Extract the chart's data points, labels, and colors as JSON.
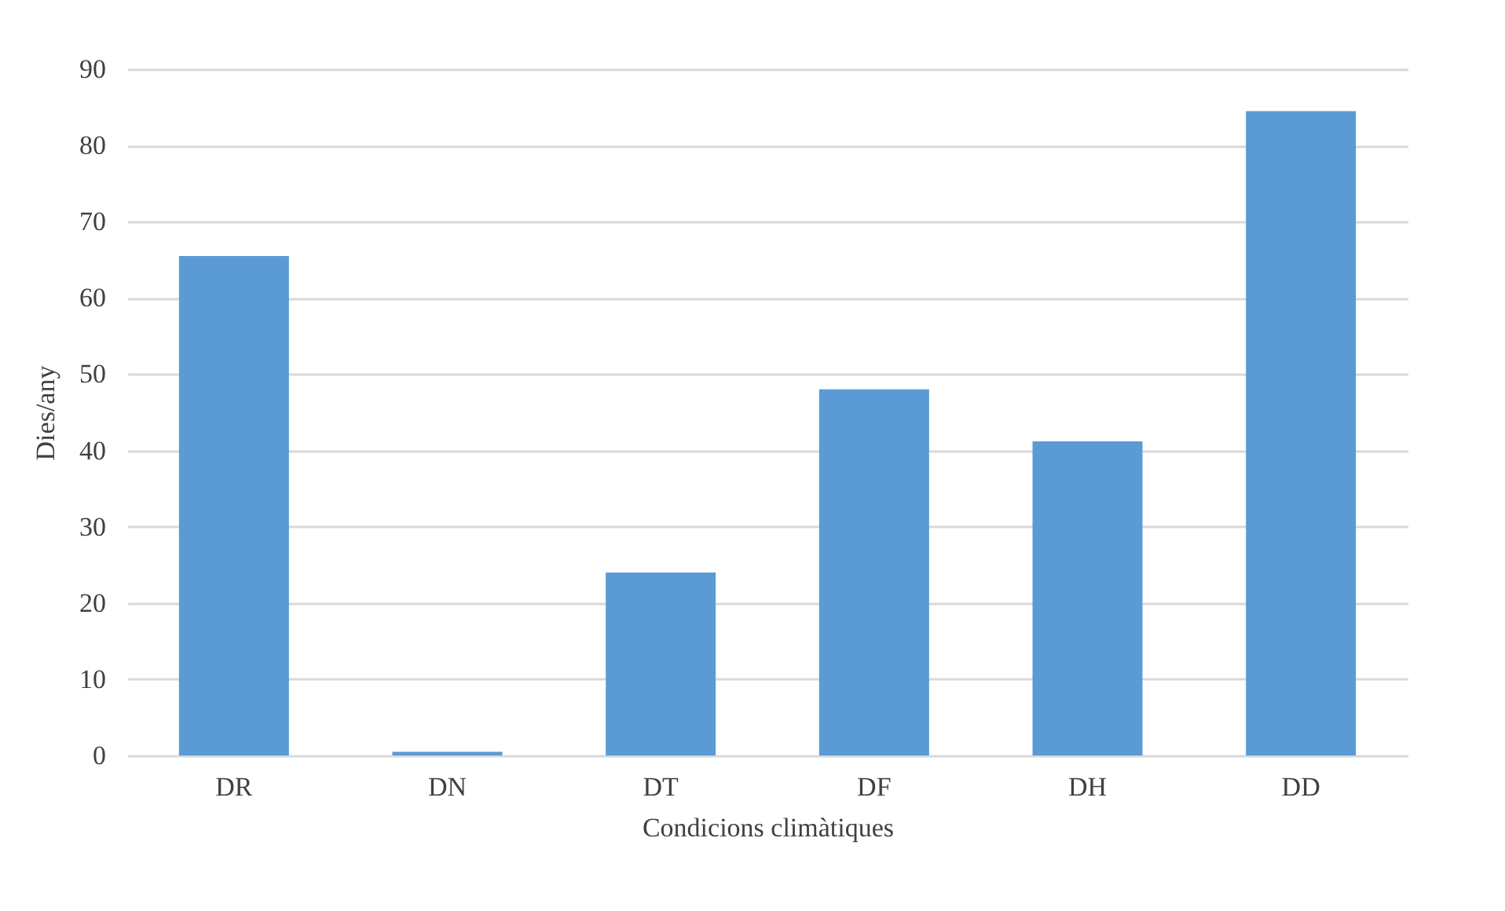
{
  "chart_data": {
    "type": "bar",
    "xlabel": "Condicions climàtiques",
    "ylabel": "Dies/any",
    "categories": [
      "DR",
      "DN",
      "DT",
      "DF",
      "DH",
      "DD"
    ],
    "values": [
      65.5,
      0.5,
      24,
      48,
      41.2,
      84.5
    ],
    "color": "#5b9bd5",
    "ylim": [
      0,
      90
    ],
    "yticks": [
      0,
      10,
      20,
      30,
      40,
      50,
      60,
      70,
      80,
      90
    ],
    "grid": "y"
  }
}
